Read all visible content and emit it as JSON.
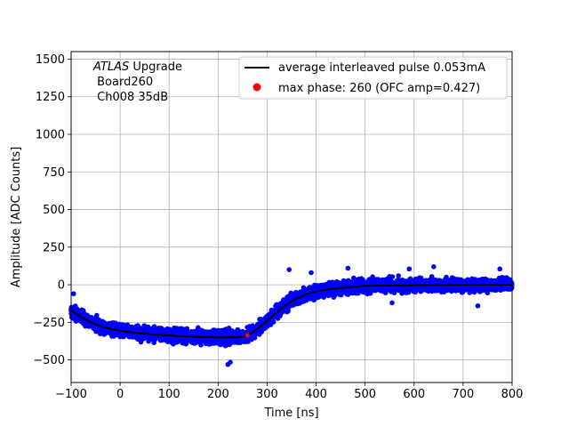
{
  "chart_data": {
    "type": "scatter",
    "xlabel": "Time [ns]",
    "ylabel": "Amplitude [ADC Counts]",
    "xlim": [
      -100,
      800
    ],
    "ylim": [
      -650,
      1550
    ],
    "x_ticks": [
      -100,
      0,
      100,
      200,
      300,
      400,
      500,
      600,
      700,
      800
    ],
    "y_ticks": [
      -500,
      -250,
      0,
      250,
      500,
      750,
      1000,
      1250,
      1500
    ],
    "x_tick_labels": [
      "−100",
      "0",
      "100",
      "200",
      "300",
      "400",
      "500",
      "600",
      "700",
      "800"
    ],
    "y_tick_labels": [
      "−500",
      "−250",
      "0",
      "250",
      "500",
      "750",
      "1000",
      "1250",
      "1500"
    ],
    "grid": true,
    "legend_position": "top-right",
    "annotation": {
      "line1_italic": "ATLAS",
      "line1_rest": " Upgrade",
      "line2": " Board260",
      "line3": " Ch008 35dB"
    },
    "series": [
      {
        "name": "average interleaved pulse 0.053mA",
        "kind": "line",
        "color": "#000000",
        "x": [
          -100,
          -80,
          -60,
          -40,
          -20,
          0,
          20,
          40,
          60,
          80,
          100,
          120,
          140,
          160,
          180,
          200,
          220,
          240,
          250,
          260,
          270,
          280,
          290,
          300,
          310,
          320,
          330,
          340,
          350,
          360,
          380,
          400,
          420,
          440,
          460,
          480,
          500,
          550,
          600,
          650,
          700,
          750,
          800
        ],
        "y": [
          -170,
          -215,
          -250,
          -275,
          -292,
          -305,
          -315,
          -322,
          -328,
          -333,
          -337,
          -341,
          -344,
          -347,
          -349,
          -350,
          -351,
          -349,
          -345,
          -335,
          -318,
          -295,
          -268,
          -240,
          -210,
          -182,
          -156,
          -132,
          -111,
          -92,
          -63,
          -45,
          -33,
          -25,
          -18,
          -12,
          -8,
          -5,
          -3,
          -2,
          -1,
          0,
          0
        ]
      },
      {
        "name": "max phase: 260 (OFC amp=0.427)",
        "kind": "marker",
        "color": "#ff0000",
        "x": [
          260
        ],
        "y": [
          -335
        ]
      }
    ],
    "scatter_cloud": {
      "color": "#0000ff",
      "spread": 55,
      "outliers": [
        [
          -95,
          -60
        ],
        [
          220,
          -530
        ],
        [
          225,
          -515
        ],
        [
          345,
          100
        ],
        [
          390,
          80
        ],
        [
          465,
          110
        ],
        [
          555,
          -120
        ],
        [
          590,
          105
        ],
        [
          640,
          120
        ],
        [
          730,
          -140
        ],
        [
          775,
          105
        ]
      ]
    }
  }
}
